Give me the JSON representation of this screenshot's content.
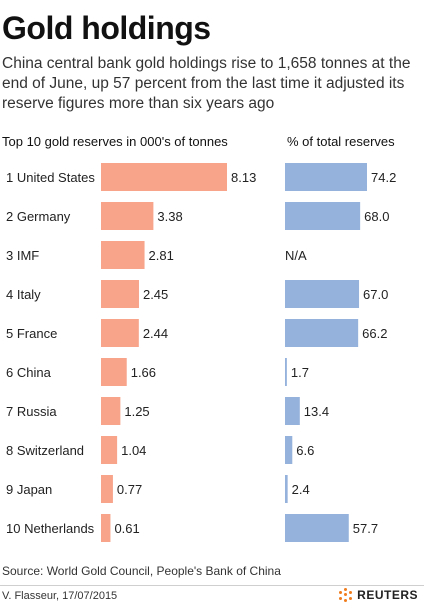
{
  "title": "Gold holdings",
  "subtitle": "China central bank gold holdings rise to 1,658 tonnes at the end of June, up 57 percent from the last time it adjusted its reserve figures more than six years ago",
  "source": "Source: World Gold Council, People's Bank of China",
  "credit": "V. Flasseur, 17/07/2015",
  "brand": "REUTERS",
  "colors": {
    "tonnes_bar": "#f7a48a",
    "percent_bar": "#95b2dc"
  },
  "chart_data": [
    {
      "type": "bar",
      "title": "Top 10 gold reserves in 000's of tonnes",
      "categories": [
        "1 United States",
        "2 Germany",
        "3 IMF",
        "4 Italy",
        "5 France",
        "6 China",
        "7 Russia",
        "8 Switzerland",
        "9 Japan",
        "10 Netherlands"
      ],
      "values": [
        8.13,
        3.38,
        2.81,
        2.45,
        2.44,
        1.66,
        1.25,
        1.04,
        0.77,
        0.61
      ],
      "value_labels": [
        "8.13",
        "3.38",
        "2.81",
        "2.45",
        "2.44",
        "1.66",
        "1.25",
        "1.04",
        "0.77",
        "0.61"
      ],
      "orientation": "horizontal",
      "grid": false,
      "xlim": [
        0,
        8.13
      ]
    },
    {
      "type": "bar",
      "title": "% of total reserves",
      "categories": [
        "1 United States",
        "2 Germany",
        "3 IMF",
        "4 Italy",
        "5 France",
        "6 China",
        "7 Russia",
        "8 Switzerland",
        "9 Japan",
        "10 Netherlands"
      ],
      "values": [
        74.2,
        68.0,
        null,
        67.0,
        66.2,
        1.7,
        13.4,
        6.6,
        2.4,
        57.7
      ],
      "value_labels": [
        "74.2",
        "68.0",
        "N/A",
        "67.0",
        "66.2",
        "1.7",
        "13.4",
        "6.6",
        "2.4",
        "57.7"
      ],
      "orientation": "horizontal",
      "grid": false,
      "xlim": [
        0,
        74.2
      ]
    }
  ]
}
